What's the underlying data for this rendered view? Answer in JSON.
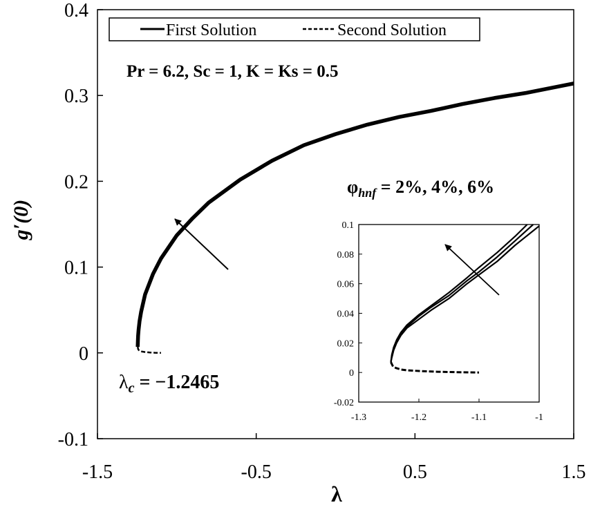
{
  "chart_data": {
    "type": "line",
    "title": "",
    "xlabel": "λ",
    "ylabel": "g′(0)",
    "xlim": [
      -1.5,
      1.5
    ],
    "ylim": [
      -0.1,
      0.4
    ],
    "x_ticks": [
      "-1.5",
      "-0.5",
      "0.5",
      "1.5"
    ],
    "y_ticks": [
      "-0.1",
      "0",
      "0.1",
      "0.2",
      "0.3",
      "0.4"
    ],
    "legend": {
      "placement": "top",
      "entries": [
        {
          "label": "First Solution",
          "style": "solid"
        },
        {
          "label": "Second Solution",
          "style": "dashed"
        }
      ]
    },
    "annotations": {
      "params": "Pr = 6.2, Sc = 1, K = Ks = 0.5",
      "phi_symbol": "φ",
      "phi_subscript": "hnf",
      "phi_values": " = 2%, 4%, 6%",
      "lambda_symbol": "λ",
      "lambda_subscript": "c",
      "lambda_value": " = −1.2465"
    },
    "critical_lambda": -1.2465,
    "series": [
      {
        "style": "solid",
        "x": [
          -1.2465,
          -1.2455,
          -1.244,
          -1.241,
          -1.235,
          -1.225,
          -1.2,
          -1.15,
          -1.1,
          -1.0,
          -0.9,
          -0.8,
          -0.6,
          -0.4,
          -0.2,
          0.0,
          0.2,
          0.4,
          0.6,
          0.8,
          1.0,
          1.2,
          1.5
        ],
        "y": [
          0.007,
          0.014,
          0.02,
          0.027,
          0.037,
          0.048,
          0.068,
          0.092,
          0.11,
          0.137,
          0.157,
          0.175,
          0.202,
          0.224,
          0.242,
          0.255,
          0.266,
          0.275,
          0.282,
          0.29,
          0.297,
          0.303,
          0.314
        ]
      },
      {
        "style": "dashed",
        "x": [
          -1.2465,
          -1.243,
          -1.238,
          -1.23,
          -1.22,
          -1.2,
          -1.17,
          -1.14,
          -1.1
        ],
        "y": [
          0.007,
          0.004,
          0.003,
          0.002,
          0.0015,
          0.001,
          0.0005,
          0.0002,
          0.0
        ]
      }
    ],
    "inset": {
      "type": "line",
      "xlim": [
        -1.3,
        -1.0
      ],
      "ylim": [
        -0.02,
        0.1
      ],
      "x_ticks": [
        "-1.3",
        "-1.2",
        "-1.1",
        "-1"
      ],
      "y_ticks": [
        "-0.02",
        "0",
        "0.02",
        "0.04",
        "0.06",
        "0.08",
        "0.1"
      ],
      "first_solution_curves": [
        {
          "x": [
            -1.2465,
            -1.245,
            -1.242,
            -1.237,
            -1.23,
            -1.22,
            -1.2,
            -1.18,
            -1.15,
            -1.12,
            -1.1,
            -1.07,
            -1.04,
            -1.02
          ],
          "y": [
            0.007,
            0.012,
            0.017,
            0.022,
            0.027,
            0.032,
            0.039,
            0.045,
            0.054,
            0.064,
            0.071,
            0.081,
            0.092,
            0.1
          ]
        },
        {
          "x": [
            -1.2465,
            -1.245,
            -1.242,
            -1.237,
            -1.23,
            -1.22,
            -1.2,
            -1.18,
            -1.15,
            -1.12,
            -1.1,
            -1.07,
            -1.04,
            -1.01
          ],
          "y": [
            0.007,
            0.011,
            0.016,
            0.021,
            0.026,
            0.031,
            0.038,
            0.044,
            0.052,
            0.062,
            0.068,
            0.078,
            0.089,
            0.1
          ]
        },
        {
          "x": [
            -1.2465,
            -1.245,
            -1.242,
            -1.237,
            -1.23,
            -1.22,
            -1.2,
            -1.18,
            -1.15,
            -1.12,
            -1.1,
            -1.07,
            -1.04,
            -1.0
          ],
          "y": [
            0.007,
            0.01,
            0.015,
            0.02,
            0.025,
            0.03,
            0.036,
            0.042,
            0.05,
            0.06,
            0.066,
            0.075,
            0.086,
            0.099
          ]
        }
      ],
      "second_solution": {
        "x": [
          -1.2465,
          -1.243,
          -1.238,
          -1.23,
          -1.22,
          -1.2,
          -1.17,
          -1.14,
          -1.1
        ],
        "y": [
          0.007,
          0.004,
          0.003,
          0.002,
          0.0015,
          0.001,
          0.0005,
          0.0002,
          0.0
        ]
      }
    }
  }
}
